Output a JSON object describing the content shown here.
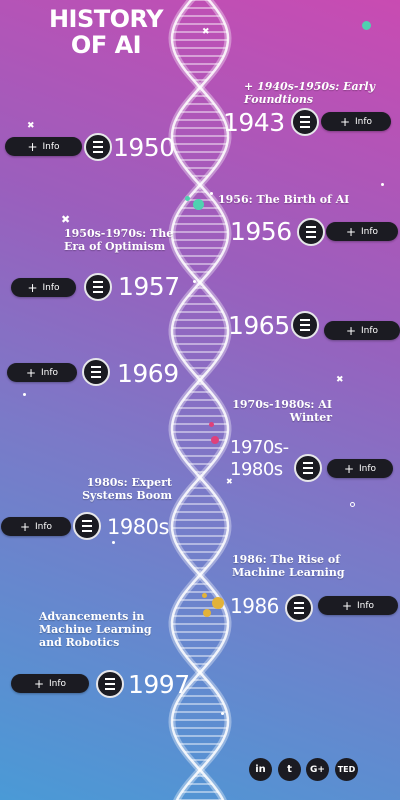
{
  "title": {
    "line1": "HISTORY",
    "line2": "OF AI"
  },
  "info_label": "Info",
  "plus_glyph": "+",
  "events": {
    "y1943": {
      "year": "1943",
      "label": "+ 1940s-1950s: Early Foundtions"
    },
    "y1950": {
      "year": "1950"
    },
    "y1956": {
      "year": "1956",
      "label": "1956: The Birth of AI"
    },
    "y1957": {
      "year": "1957",
      "label": "1950s-1970s: The Era of Optimism"
    },
    "y1965": {
      "year": "1965"
    },
    "y1969": {
      "year": "1969"
    },
    "y1970s": {
      "year_line1": "1970s-",
      "year_line2": "1980s",
      "label": "1970s-1980s: AI Winter"
    },
    "y1980s": {
      "year": "1980s",
      "label": "1980s: Expert Systems Boom"
    },
    "y1986": {
      "year": "1986",
      "label": "1986: The Rise of Machine Learning"
    },
    "y1997": {
      "year": "1997",
      "label": "Advancements in Machine Learning and Robotics"
    }
  },
  "social": {
    "linkedin": "in",
    "twitter": "t",
    "googleplus": "G+",
    "ted": "TED"
  },
  "colors": {
    "background_top": "#c94bb2",
    "background_bottom": "#4a9ad6",
    "button": "#1b1b22",
    "accent_teal": "#4fd1b0",
    "accent_pink": "#e0407a",
    "accent_gold": "#e2b23a"
  }
}
